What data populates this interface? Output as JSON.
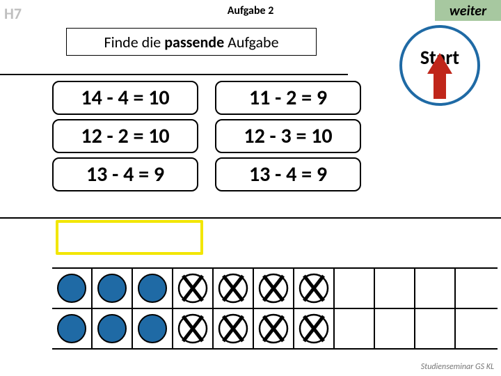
{
  "corner": "H7",
  "title": "Aufgabe 2",
  "next_label": "weiter",
  "instruction": {
    "pre": "Finde die ",
    "bold": "passende",
    "post": " Aufgabe"
  },
  "start_label": "Start",
  "equations": {
    "left": [
      "14 - 4 = 10",
      "12 - 2 = 10",
      "13 - 4 = 9"
    ],
    "right": [
      "11 - 2 = 9",
      "12 - 3 = 10",
      "13 - 4 = 9"
    ]
  },
  "colors": {
    "accent_blue": "#1f6aa5",
    "highlight_yellow": "#f2e600",
    "next_bg": "#a7c8a0",
    "arrow_red": "#c0261a",
    "muted_text": "#bfbfbf"
  },
  "token_grid": {
    "rows": 2,
    "cols": 10,
    "pattern": [
      [
        "dot",
        "dot",
        "dot",
        "x",
        "x",
        "x",
        "x",
        "empty",
        "empty",
        "empty"
      ],
      [
        "dot",
        "dot",
        "dot",
        "x",
        "x",
        "x",
        "x",
        "empty",
        "empty",
        "empty"
      ]
    ]
  },
  "footer": "Studienseminar GS KL"
}
